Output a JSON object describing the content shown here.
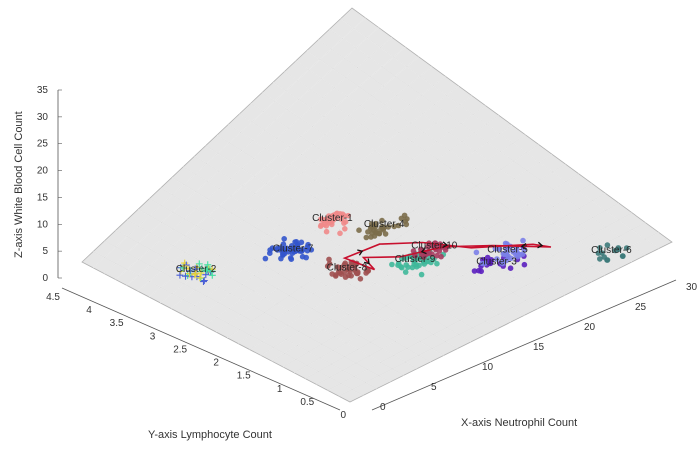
{
  "chart_data": {
    "type": "scatter",
    "title": "",
    "xlabel": "X-axis Neutrophil Count",
    "ylabel": "Y-axis Lymphocyte Count",
    "zlabel": "Z-axis White Blood Cell Count",
    "xlim": [
      0,
      30
    ],
    "ylim": [
      0,
      4.5
    ],
    "zlim": [
      0,
      35
    ],
    "x_ticks": [
      "0",
      "5",
      "10",
      "15",
      "20",
      "25",
      "30"
    ],
    "y_ticks": [
      "0",
      "0.5",
      "1",
      "1.5",
      "2",
      "2.5",
      "3",
      "3.5",
      "4",
      "4.5"
    ],
    "z_ticks": [
      "0",
      "5",
      "10",
      "15",
      "20",
      "25",
      "30",
      "35"
    ],
    "grid": true,
    "colors": {
      "plane": "#e6e6e6",
      "grid": "#ffffff",
      "plane_edge": "#b0b0b0",
      "path": "#c8102e"
    },
    "clusters": [
      {
        "label": "Cluster-1",
        "color": "#f08a8a",
        "center": [
          0.55,
          0.66,
          0.27
        ],
        "spread": [
          0.05,
          0.04
        ],
        "count": 32,
        "marker": "circle"
      },
      {
        "label": "Cluster-2",
        "color": "#40e0a0",
        "center": [
          0.2,
          0.74,
          0.07
        ],
        "spread": [
          0.04,
          0.04
        ],
        "count": 40,
        "marker": "plus"
      },
      {
        "label": "Cluster-3",
        "color": "#5b1fbf",
        "center": [
          0.62,
          0.18,
          0.55
        ],
        "spread": [
          0.07,
          0.05
        ],
        "count": 22,
        "marker": "circle"
      },
      {
        "label": "Cluster-4",
        "color": "#7b6d4a",
        "center": [
          0.61,
          0.55,
          0.22
        ],
        "spread": [
          0.05,
          0.03
        ],
        "count": 34,
        "marker": "circle"
      },
      {
        "label": "Cluster-5",
        "color": "#7b7fe8",
        "center": [
          0.7,
          0.23,
          0.29
        ],
        "spread": [
          0.05,
          0.04
        ],
        "count": 34,
        "marker": "circle"
      },
      {
        "label": "Cluster-6",
        "color": "#3d7a7a",
        "center": [
          0.83,
          0.02,
          0.5
        ],
        "spread": [
          0.04,
          0.03
        ],
        "count": 14,
        "marker": "circle"
      },
      {
        "label": "Cluster-7",
        "color": "#3355cc",
        "center": [
          0.4,
          0.63,
          0.17
        ],
        "spread": [
          0.05,
          0.04
        ],
        "count": 44,
        "marker": "circle"
      },
      {
        "label": "Cluster-8",
        "color": "#a05050",
        "center": [
          0.43,
          0.48,
          0.02
        ],
        "spread": [
          0.04,
          0.05
        ],
        "count": 38,
        "marker": "circle"
      },
      {
        "label": "Cluster-9",
        "color": "#3fb89a",
        "center": [
          0.55,
          0.38,
          0.1
        ],
        "spread": [
          0.05,
          0.04
        ],
        "count": 40,
        "marker": "circle"
      },
      {
        "label": "Cluster-10",
        "color": "#a83c60",
        "center": [
          0.61,
          0.38,
          0.24
        ],
        "spread": [
          0.04,
          0.03
        ],
        "count": 30,
        "marker": "circle"
      }
    ],
    "path": [
      [
        0.78,
        0.17,
        0.3
      ],
      [
        0.7,
        0.28,
        0.3
      ],
      [
        0.62,
        0.36,
        0.34
      ],
      [
        0.55,
        0.43,
        0.05
      ],
      [
        0.5,
        0.5,
        -0.02
      ],
      [
        0.47,
        0.43,
        0.05
      ],
      [
        0.46,
        0.52,
        0.1
      ],
      [
        0.55,
        0.5,
        0.18
      ],
      [
        0.61,
        0.42,
        0.27
      ],
      [
        0.67,
        0.32,
        0.2
      ],
      [
        0.77,
        0.22,
        0.22
      ],
      [
        0.78,
        0.17,
        0.3
      ]
    ]
  }
}
